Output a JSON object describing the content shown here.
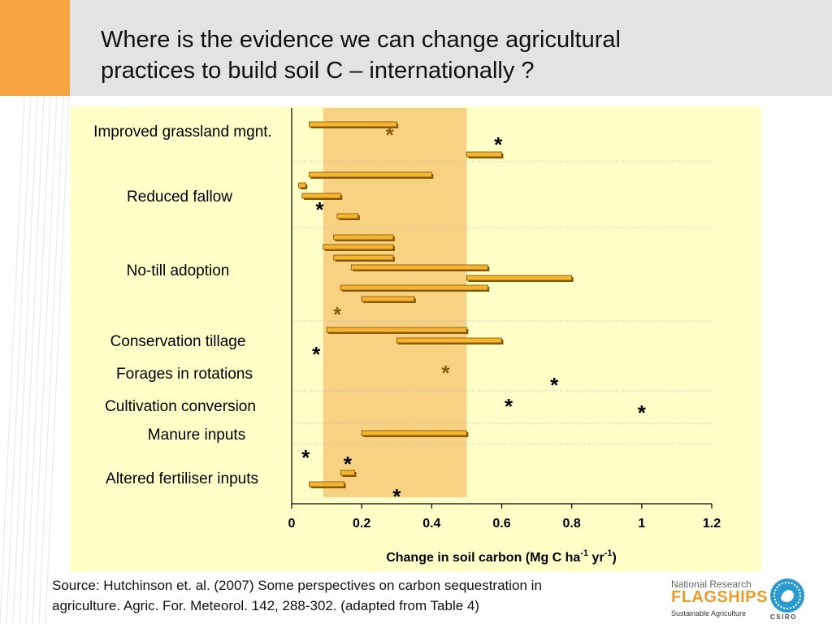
{
  "slide": {
    "title_lines": [
      "Where is the evidence we can change agricultural",
      "practices to build soil C – internationally ?"
    ],
    "source_lines": [
      "Source: Hutchinson et. al. (2007) Some perspectives on carbon sequestration in",
      "agriculture. Agric. For. Meteorol. 142, 288-302. (adapted from Table 4)"
    ],
    "logo": {
      "line1": "National Research",
      "line2": "FLAGSHIPS",
      "line3": "Sustainable Agriculture",
      "seal_text": "CSIRO"
    },
    "colors": {
      "header": "#e3e3e3",
      "accent": "#f7a541",
      "plot_background": "#ffffc7",
      "highlight_band": "#f5c26b",
      "bar_fill": "#f5b52e",
      "bar_shadow": "#8a5a00",
      "star_black": "#000000",
      "star_brown": "#8a5a12"
    }
  },
  "chart_data": {
    "type": "bar",
    "orientation": "horizontal",
    "xlabel_main": "Change in soil carbon (Mg C ha",
    "xlabel_sup1": "-1",
    "xlabel_mid": " yr",
    "xlabel_sup2": "-1",
    "xlabel_end": ")",
    "xlim": [
      0,
      1.2
    ],
    "xticks": [
      "0",
      "0.2",
      "0.4",
      "0.6",
      "0.8",
      "1",
      "1.2"
    ],
    "highlight_band": [
      0.09,
      0.5
    ],
    "categories": [
      "Improved grassland mgnt.",
      "Reduced fallow",
      "No-till adoption",
      "Conservation tillage",
      "Forages in rotations",
      "Cultivation conversion",
      "Manure inputs",
      "Altered fertiliser inputs"
    ],
    "ranges": [
      {
        "category": "Improved grassland mgnt.",
        "start": 0.05,
        "end": 0.3
      },
      {
        "category": "Improved grassland mgnt.",
        "start": 0.5,
        "end": 0.6
      },
      {
        "category": "Reduced fallow",
        "start": 0.05,
        "end": 0.4
      },
      {
        "category": "Reduced fallow",
        "start": 0.02,
        "end": 0.04
      },
      {
        "category": "Reduced fallow",
        "start": 0.03,
        "end": 0.14
      },
      {
        "category": "Reduced fallow",
        "start": 0.13,
        "end": 0.19
      },
      {
        "category": "No-till adoption",
        "start": 0.12,
        "end": 0.29
      },
      {
        "category": "No-till adoption",
        "start": 0.09,
        "end": 0.29
      },
      {
        "category": "No-till adoption",
        "start": 0.12,
        "end": 0.29
      },
      {
        "category": "No-till adoption",
        "start": 0.17,
        "end": 0.56
      },
      {
        "category": "No-till adoption",
        "start": 0.5,
        "end": 0.8
      },
      {
        "category": "No-till adoption",
        "start": 0.14,
        "end": 0.56
      },
      {
        "category": "No-till adoption",
        "start": 0.2,
        "end": 0.35
      },
      {
        "category": "Conservation tillage",
        "start": 0.1,
        "end": 0.5
      },
      {
        "category": "Conservation tillage",
        "start": 0.3,
        "end": 0.6
      },
      {
        "category": "Manure inputs",
        "start": 0.2,
        "end": 0.5
      },
      {
        "category": "Altered fertiliser inputs",
        "start": 0.14,
        "end": 0.18
      },
      {
        "category": "Altered fertiliser inputs",
        "start": 0.05,
        "end": 0.15
      }
    ],
    "point_markers": [
      {
        "category": "Improved grassland mgnt.",
        "x": 0.28,
        "color": "brown"
      },
      {
        "category": "Improved grassland mgnt.",
        "x": 0.59,
        "color": "black"
      },
      {
        "category": "Reduced fallow",
        "x": 0.08,
        "color": "black"
      },
      {
        "category": "No-till adoption",
        "x": 0.13,
        "color": "brown"
      },
      {
        "category": "Conservation tillage",
        "x": 0.07,
        "color": "black"
      },
      {
        "category": "Forages in rotations",
        "x": 0.44,
        "color": "brown"
      },
      {
        "category": "Forages in rotations",
        "x": 0.75,
        "color": "black"
      },
      {
        "category": "Cultivation conversion",
        "x": 0.62,
        "color": "black"
      },
      {
        "category": "Cultivation conversion",
        "x": 1.0,
        "color": "black"
      },
      {
        "category": "Altered fertiliser inputs",
        "x": 0.04,
        "color": "black"
      },
      {
        "category": "Altered fertiliser inputs",
        "x": 0.16,
        "color": "black"
      },
      {
        "category": "Altered fertiliser inputs",
        "x": 0.3,
        "color": "black"
      }
    ],
    "marker_symbol": "*",
    "grid": false
  }
}
